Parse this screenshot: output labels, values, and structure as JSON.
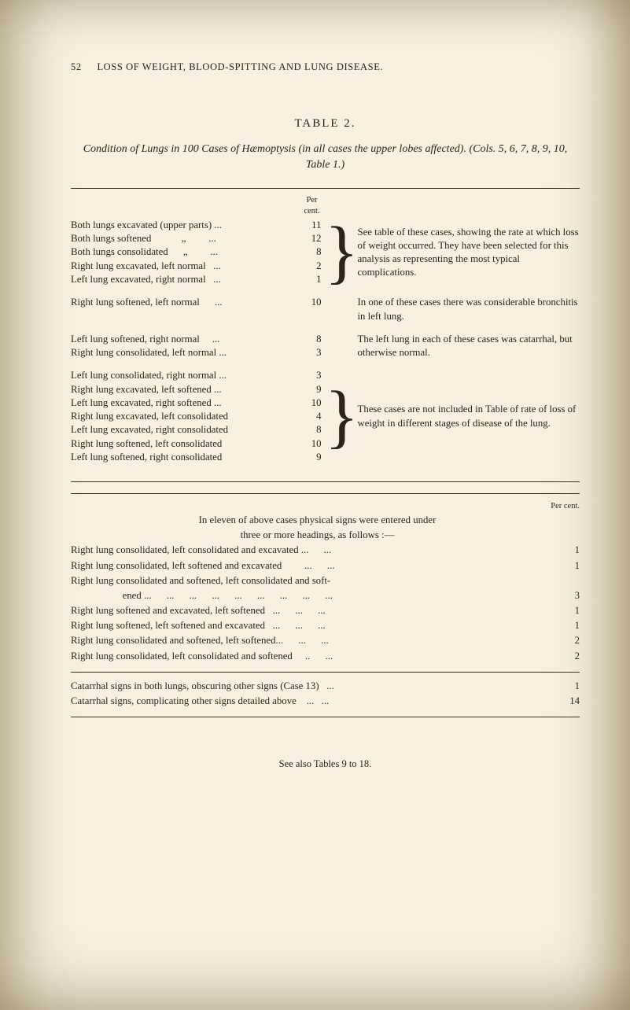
{
  "page_number": "52",
  "running_head": "LOSS OF WEIGHT, BLOOD-SPITTING AND LUNG DISEASE.",
  "table_label": "TABLE 2.",
  "caption_pre": "Condition of Lungs in ",
  "caption_num": "100",
  "caption_mid": " Cases of Hæmoptysis (in all cases the upper lobes affected).",
  "caption_cols": "   (Cols. 5, 6, 7, 8, 9, 10, Table 1.)",
  "percent_label": "Per cent.",
  "groups": [
    {
      "left": [
        "Both lungs excavated (upper parts) ...",
        "Both lungs softened            „         ...",
        "Both lungs consolidated      „         ...",
        "Right lung excavated, left normal   ...",
        "Left lung excavated, right normal   ..."
      ],
      "nums": [
        "11",
        "12",
        "8",
        "2",
        "1"
      ],
      "brace": "}",
      "brace_class": "brace-xl",
      "right": "See table of these cases, showing the rate at which loss of weight occurred. They have been selected for this analysis as representing the most typical complications."
    },
    {
      "left": [
        "Right lung softened, left normal      ..."
      ],
      "nums": [
        "10"
      ],
      "brace": "",
      "brace_class": "brace-s",
      "right": "In one of these cases there was considerable bronchitis in left lung."
    },
    {
      "left": [
        "Left lung softened, right normal     ...",
        "Right lung consolidated, left normal ..."
      ],
      "nums": [
        "8",
        "3"
      ],
      "brace": "",
      "brace_class": "brace-s",
      "right": "The left lung in each of these cases was catarrhal, but otherwise normal."
    },
    {
      "left": [
        "Left lung consolidated, right normal ...",
        "Right lung excavated, left softened ...",
        "Left lung excavated, right softened ...",
        "Right lung excavated, left consolidated",
        "Left lung excavated, right consolidated",
        "Right lung softened, left consolidated",
        "Left lung softened, right consolidated"
      ],
      "nums": [
        "3",
        "9",
        "10",
        "4",
        "8",
        "10",
        "9"
      ],
      "brace": "}",
      "brace_class": "brace-xl",
      "right": "These cases are not included in Table of rate of loss of weight in different stages of disease of the lung."
    }
  ],
  "sec2_intro1": "In eleven of above cases physical signs were entered under",
  "sec2_intro2": "three or more headings, as follows :—",
  "sec2_rows": [
    {
      "t": "Right lung consolidated, left consolidated and excavated ...      ...",
      "n": "1"
    },
    {
      "t": "Right lung consolidated, left softened and excavated         ...      ...",
      "n": "1"
    },
    {
      "t": "Right lung consolidated and softened, left consolidated and soft-",
      "n": ""
    },
    {
      "t": "        ened ...      ...      ...      ...      ...      ...      ...      ...      ...",
      "n": "3",
      "indent": true
    },
    {
      "t": "Right lung softened and excavated, left softened   ...      ...      ...",
      "n": "1"
    },
    {
      "t": "Right lung softened, left softened and excavated   ...      ...      ...",
      "n": "1"
    },
    {
      "t": "Right lung consolidated and softened, left softened...      ...      ...",
      "n": "2"
    },
    {
      "t": "Right lung consolidated, left consolidated and softened     ..      ...",
      "n": "2"
    }
  ],
  "sec3_rows": [
    {
      "t": "Catarrhal signs in both lungs, obscuring other signs (Case 13)   ...",
      "n": "1"
    },
    {
      "t": "Catarrhal signs, complicating other signs detailed above    ...   ...",
      "n": "14"
    }
  ],
  "footnote": "See also Tables 9 to 18."
}
